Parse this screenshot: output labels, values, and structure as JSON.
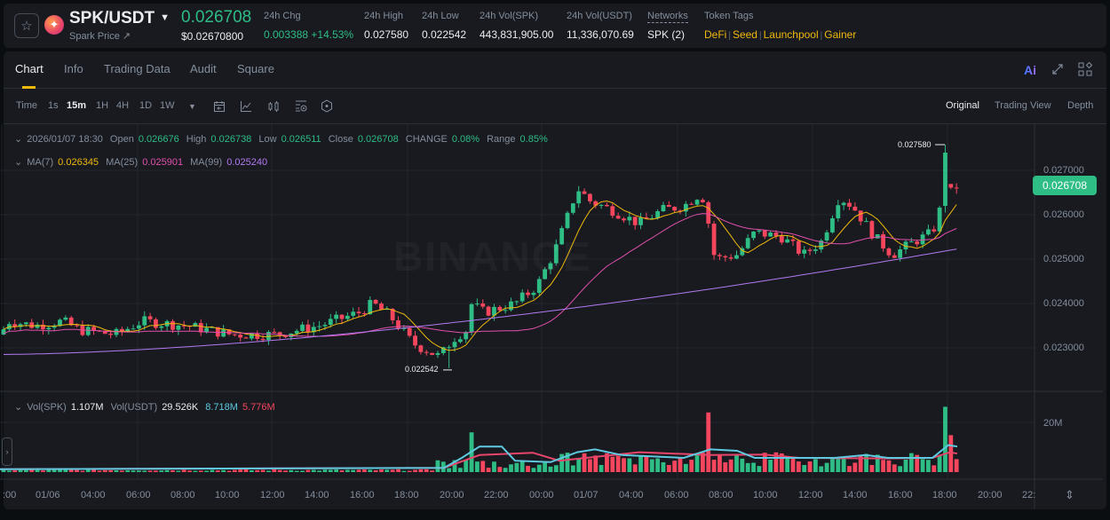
{
  "header": {
    "pair": "SPK/USDT",
    "subtitle": "Spark Price ↗",
    "last_price": "0.026708",
    "last_price_usd": "$0.02670800",
    "stats": [
      {
        "label": "24h Chg",
        "value": "0.003388 +14.53%",
        "color": "green"
      },
      {
        "label": "24h High",
        "value": "0.027580"
      },
      {
        "label": "24h Low",
        "value": "0.022542"
      },
      {
        "label": "24h Vol(SPK)",
        "value": "443,831,905.00"
      },
      {
        "label": "24h Vol(USDT)",
        "value": "11,336,070.69"
      },
      {
        "label": "Networks",
        "value": "SPK (2)"
      }
    ],
    "token_tags_label": "Token Tags",
    "token_tags": [
      "DeFi",
      "Seed",
      "Launchpool",
      "Gainer"
    ]
  },
  "tabs": [
    "Chart",
    "Info",
    "Trading Data",
    "Audit",
    "Square"
  ],
  "active_tab": "Chart",
  "ai_label": "Ai",
  "toolbar": {
    "time_label": "Time",
    "intervals": [
      "1s",
      "15m",
      "1H",
      "4H",
      "1D",
      "1W"
    ],
    "active_interval": "15m",
    "views": [
      "Original",
      "Trading View",
      "Depth"
    ],
    "active_view": "Original"
  },
  "legend": {
    "datetime": "2026/01/07 18:30",
    "open_label": "Open",
    "open": "0.026676",
    "high_label": "High",
    "high": "0.026738",
    "low_label": "Low",
    "low": "0.026511",
    "close_label": "Close",
    "close": "0.026708",
    "change_label": "CHANGE",
    "change": "0.08%",
    "range_label": "Range",
    "range": "0.85%",
    "ma7_label": "MA(7)",
    "ma7": "0.026345",
    "ma25_label": "MA(25)",
    "ma25": "0.025901",
    "ma99_label": "MA(99)",
    "ma99": "0.025240",
    "vol_spk_label": "Vol(SPK)",
    "vol_spk": "1.107M",
    "vol_usdt_label": "Vol(USDT)",
    "vol_usdt": "29.526K",
    "vol_ma1": "8.718M",
    "vol_ma2": "5.776M"
  },
  "price_axis": [
    "0.027000",
    "0.026000",
    "0.025000",
    "0.024000",
    "0.023000"
  ],
  "current_price_tag": "0.026708",
  "high_marker": "0.027580",
  "low_marker": "0.022542",
  "volume_axis": [
    "20M"
  ],
  "time_axis": [
    ":00",
    "01/06",
    "04:00",
    "06:00",
    "08:00",
    "10:00",
    "12:00",
    "14:00",
    "16:00",
    "18:00",
    "20:00",
    "22:00",
    "00:00",
    "01/07",
    "04:00",
    "06:00",
    "08:00",
    "10:00",
    "12:00",
    "14:00",
    "16:00",
    "18:00",
    "20:00",
    "22:"
  ],
  "watermark": "BINANCE",
  "colors": {
    "up": "#2ebd85",
    "down": "#f6465d",
    "ma7": "#f0b90b",
    "ma25": "#e14fab",
    "ma99": "#b27af0",
    "vol_ma1": "#5ec9e0",
    "vol_ma2": "#e8456b"
  },
  "chart_data": {
    "type": "candlestick",
    "interval": "15m",
    "ylim": [
      0.0223,
      0.0278
    ],
    "key_points": [
      {
        "x_label": "01/06 00:00",
        "close": 0.0235
      },
      {
        "x_label": "01/06 16:00",
        "close": 0.0238
      },
      {
        "x_label": "01/06 20:00",
        "low": 0.022542
      },
      {
        "x_label": "01/07 01:00",
        "close": 0.0266
      },
      {
        "x_label": "01/07 07:00",
        "close": 0.0266
      },
      {
        "x_label": "01/07 08:00",
        "close": 0.025
      },
      {
        "x_label": "01/07 14:00",
        "close": 0.0264
      },
      {
        "x_label": "01/07 18:00",
        "high": 0.02758
      },
      {
        "x_label": "01/07 18:30",
        "close": 0.026708
      }
    ]
  }
}
